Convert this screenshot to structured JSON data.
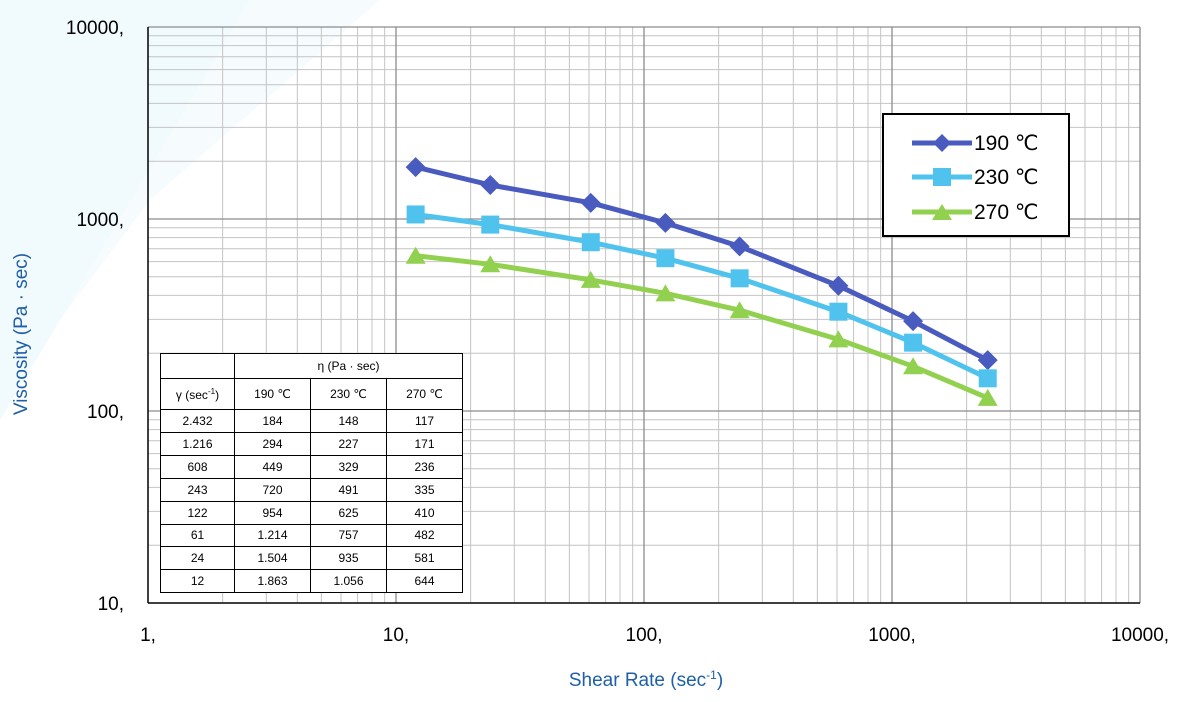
{
  "chart_data": {
    "type": "line",
    "xscale": "log",
    "yscale": "log",
    "xlim": [
      1,
      10000
    ],
    "ylim": [
      10,
      10000
    ],
    "x_ticks": [
      "1,",
      "10,",
      "100,",
      "1000,",
      "10000,"
    ],
    "y_ticks": [
      "10,",
      "100,",
      "1000,",
      "10000,"
    ],
    "xlabel": "Shear Rate (sec",
    "xlabel_sup": "-1",
    "xlabel_suffix": ")",
    "ylabel": "Viscosity (Pa · sec)",
    "grid": true,
    "legend_position": "upper-right",
    "x": [
      12,
      24,
      61,
      122,
      243,
      608,
      1216,
      2432
    ],
    "series": [
      {
        "name": "190 ℃",
        "color": "#4a5bbf",
        "marker": "diamond",
        "values": [
          1863,
          1504,
          1214,
          954,
          720,
          449,
          294,
          184
        ]
      },
      {
        "name": "230 ℃",
        "color": "#4fc3ee",
        "marker": "square",
        "values": [
          1056,
          935,
          757,
          625,
          491,
          329,
          227,
          148
        ]
      },
      {
        "name": "270 ℃",
        "color": "#92d14f",
        "marker": "triangle",
        "values": [
          644,
          581,
          482,
          410,
          335,
          236,
          171,
          117
        ]
      }
    ],
    "table": {
      "group_header": "η (Pa · sec)",
      "col0_header": "γ (sec",
      "col0_header_sup": "-1",
      "col0_header_suffix": ")",
      "columns": [
        "190 ℃",
        "230 ℃",
        "270 ℃"
      ],
      "rows": [
        [
          "2.432",
          "184",
          "148",
          "117"
        ],
        [
          "1.216",
          "294",
          "227",
          "171"
        ],
        [
          "608",
          "449",
          "329",
          "236"
        ],
        [
          "243",
          "720",
          "491",
          "335"
        ],
        [
          "122",
          "954",
          "625",
          "410"
        ],
        [
          "61",
          "1.214",
          "757",
          "482"
        ],
        [
          "24",
          "1.504",
          "935",
          "581"
        ],
        [
          "12",
          "1.863",
          "1.056",
          "644"
        ]
      ]
    }
  }
}
